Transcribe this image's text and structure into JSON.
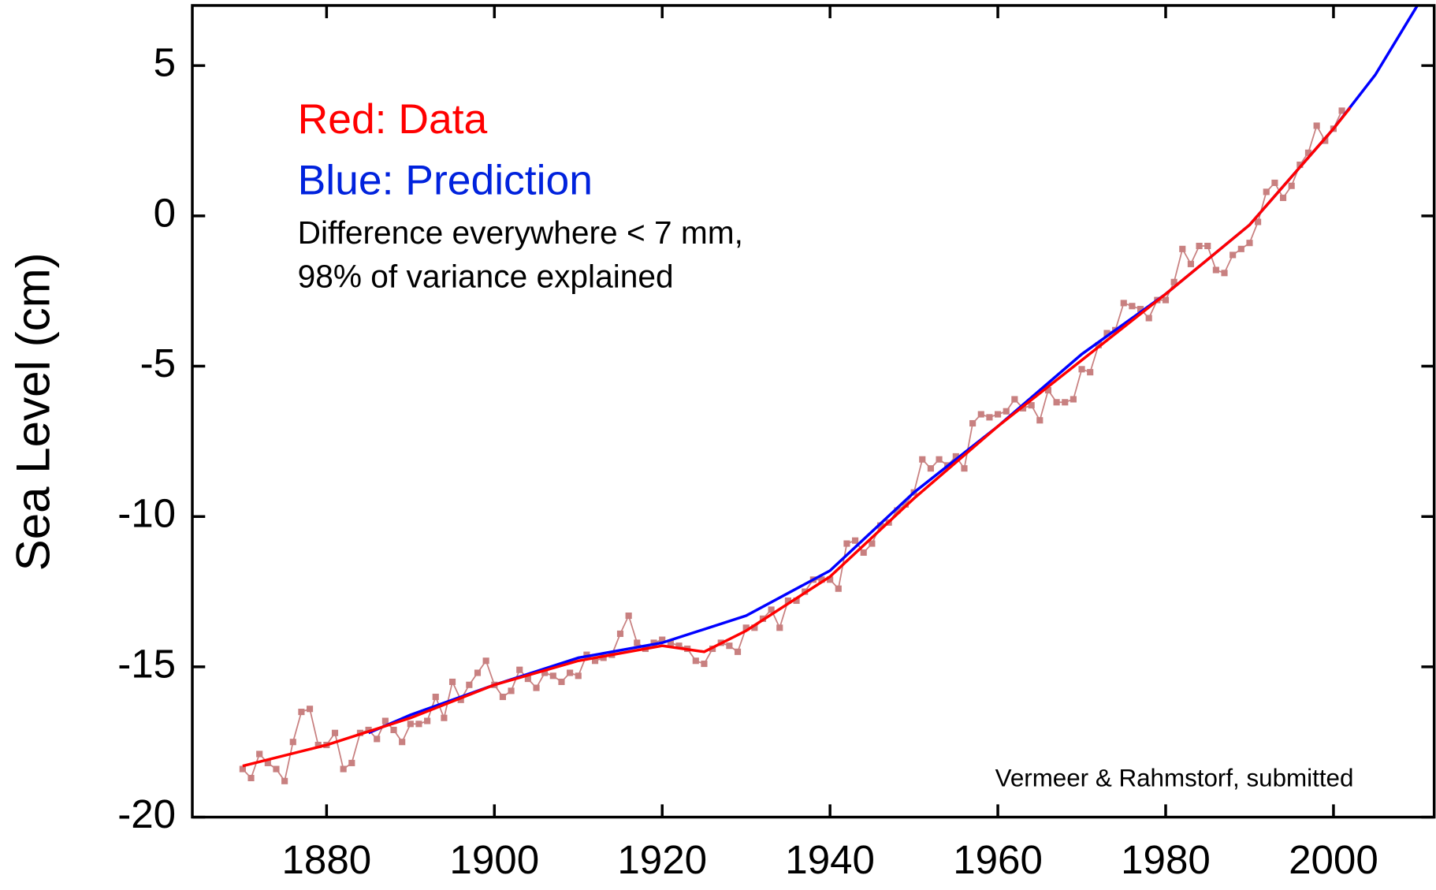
{
  "chart_data": {
    "type": "line",
    "y_label": "Sea Level (cm)",
    "annotations": [
      {
        "text": "Red: Data",
        "color": "#ff0000"
      },
      {
        "text": "Blue: Prediction",
        "color": "#0022dd"
      },
      {
        "text": "Difference everywhere < 7 mm,",
        "color": "#000000"
      },
      {
        "text": "98% of variance explained",
        "color": "#000000"
      },
      {
        "text": "Vermeer & Rahmstorf, submitted",
        "color": "#000000"
      }
    ],
    "xlim": [
      1864,
      2012
    ],
    "ylim": [
      -20,
      7
    ],
    "xticks": [
      1880,
      1900,
      1920,
      1940,
      1960,
      1980,
      2000
    ],
    "yticks": [
      -20,
      -15,
      -10,
      -5,
      0,
      5
    ],
    "series": [
      {
        "color": "#c88080",
        "markers": true,
        "x": [
          1870,
          1871,
          1872,
          1873,
          1874,
          1875,
          1876,
          1877,
          1878,
          1879,
          1880,
          1881,
          1882,
          1883,
          1884,
          1885,
          1886,
          1887,
          1888,
          1889,
          1890,
          1891,
          1892,
          1893,
          1894,
          1895,
          1896,
          1897,
          1898,
          1899,
          1900,
          1901,
          1902,
          1903,
          1904,
          1905,
          1906,
          1907,
          1908,
          1909,
          1910,
          1911,
          1912,
          1913,
          1914,
          1915,
          1916,
          1917,
          1918,
          1919,
          1920,
          1921,
          1922,
          1923,
          1924,
          1925,
          1926,
          1927,
          1928,
          1929,
          1930,
          1931,
          1932,
          1933,
          1934,
          1935,
          1936,
          1937,
          1938,
          1939,
          1940,
          1941,
          1942,
          1943,
          1944,
          1945,
          1946,
          1947,
          1948,
          1949,
          1950,
          1951,
          1952,
          1953,
          1954,
          1955,
          1956,
          1957,
          1958,
          1959,
          1960,
          1961,
          1962,
          1963,
          1964,
          1965,
          1966,
          1967,
          1968,
          1969,
          1970,
          1971,
          1972,
          1973,
          1974,
          1975,
          1976,
          1977,
          1978,
          1979,
          1980,
          1981,
          1982,
          1983,
          1984,
          1985,
          1986,
          1987,
          1988,
          1989,
          1990,
          1991,
          1992,
          1993,
          1994,
          1995,
          1996,
          1997,
          1998,
          1999,
          2000,
          2001
        ],
        "values": [
          -18.4,
          -18.7,
          -17.9,
          -18.2,
          -18.4,
          -18.8,
          -17.5,
          -16.5,
          -16.4,
          -17.6,
          -17.6,
          -17.2,
          -18.4,
          -18.2,
          -17.2,
          -17.1,
          -17.4,
          -16.8,
          -17.1,
          -17.5,
          -16.9,
          -16.9,
          -16.8,
          -16.0,
          -16.7,
          -15.5,
          -16.1,
          -15.6,
          -15.2,
          -14.8,
          -15.6,
          -16.0,
          -15.8,
          -15.1,
          -15.4,
          -15.7,
          -15.2,
          -15.3,
          -15.5,
          -15.2,
          -15.3,
          -14.6,
          -14.8,
          -14.7,
          -14.6,
          -13.9,
          -13.3,
          -14.2,
          -14.4,
          -14.2,
          -14.1,
          -14.2,
          -14.3,
          -14.4,
          -14.8,
          -14.9,
          -14.4,
          -14.2,
          -14.3,
          -14.5,
          -13.7,
          -13.7,
          -13.4,
          -13.1,
          -13.7,
          -12.8,
          -12.8,
          -12.5,
          -12.1,
          -12.1,
          -12.1,
          -12.4,
          -10.9,
          -10.8,
          -11.2,
          -10.9,
          -10.3,
          -10.2,
          -9.8,
          -9.6,
          -9.2,
          -8.1,
          -8.4,
          -8.1,
          -8.3,
          -8.0,
          -8.4,
          -6.9,
          -6.6,
          -6.7,
          -6.6,
          -6.5,
          -6.1,
          -6.4,
          -6.3,
          -6.8,
          -5.8,
          -6.2,
          -6.2,
          -6.1,
          -5.1,
          -5.2,
          -4.3,
          -3.9,
          -3.8,
          -2.9,
          -3.0,
          -3.1,
          -3.4,
          -2.8,
          -2.8,
          -2.2,
          -1.1,
          -1.6,
          -1.0,
          -1.0,
          -1.8,
          -1.9,
          -1.3,
          -1.1,
          -0.9,
          -0.2,
          0.8,
          1.1,
          0.6,
          1.0,
          1.7,
          2.1,
          3.0,
          2.5,
          2.9,
          3.5
        ]
      },
      {
        "color": "#0000ff",
        "markers": false,
        "x": [
          1885,
          1890,
          1900,
          1910,
          1920,
          1930,
          1940,
          1950,
          1960,
          1970,
          1980,
          1990,
          2000,
          2005,
          2010
        ],
        "values": [
          -17.2,
          -16.6,
          -15.6,
          -14.7,
          -14.2,
          -13.3,
          -11.8,
          -9.2,
          -7.0,
          -4.6,
          -2.6,
          -0.3,
          2.9,
          4.7,
          7.0
        ]
      },
      {
        "color": "#ff0000",
        "markers": false,
        "x": [
          1870,
          1880,
          1890,
          1900,
          1910,
          1920,
          1925,
          1930,
          1940,
          1950,
          1960,
          1970,
          1980,
          1990,
          2000,
          2002
        ],
        "values": [
          -18.3,
          -17.6,
          -16.7,
          -15.6,
          -14.8,
          -14.3,
          -14.5,
          -13.8,
          -12.0,
          -9.4,
          -7.0,
          -4.8,
          -2.6,
          -0.3,
          2.9,
          3.6
        ]
      }
    ]
  }
}
